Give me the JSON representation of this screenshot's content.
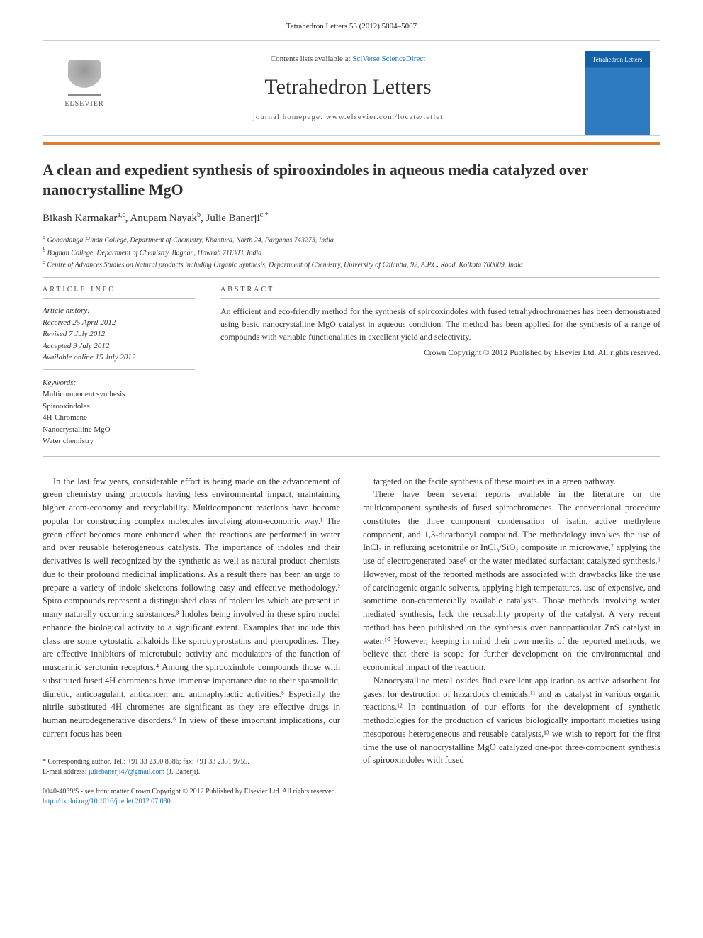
{
  "citation": "Tetrahedron Letters 53 (2012) 5004–5007",
  "header": {
    "contents_prefix": "Contents lists available at ",
    "contents_link": "SciVerse ScienceDirect",
    "journal": "Tetrahedron Letters",
    "homepage_label": "journal homepage: ",
    "homepage_url": "www.elsevier.com/locate/tetlet",
    "publisher": "ELSEVIER",
    "cover_jname": "Tetrahedron Letters"
  },
  "title": "A clean and expedient synthesis of spirooxindoles in aqueous media catalyzed over nanocrystalline MgO",
  "authors_html": "Bikash Karmakar<sup>a,c</sup>, Anupam Nayak<sup>b</sup>, Julie Banerji<sup>c,*</sup>",
  "affiliations": [
    "a Gobardanga Hindu College, Department of Chemistry, Khantura, North 24, Parganas 743273, India",
    "b Bagnan College, Department of Chemistry, Bagnan, Howrah 711303, India",
    "c Centre of Advances Studies on Natural products including Organic Synthesis, Department of Chemistry, University of Calcutta, 92, A.P.C. Road, Kolkata 700009, India"
  ],
  "info_labels": {
    "article_info": "ARTICLE INFO",
    "abstract": "ABSTRACT"
  },
  "history": {
    "label": "Article history:",
    "received": "Received 25 April 2012",
    "revised": "Revised 7 July 2012",
    "accepted": "Accepted 9 July 2012",
    "online": "Available online 15 July 2012"
  },
  "keywords": {
    "label": "Keywords:",
    "items": [
      "Multicomponent synthesis",
      "Spirooxindoles",
      "4H-Chromene",
      "Nanocrystalline MgO",
      "Water chemistry"
    ]
  },
  "abstract": "An efficient and eco-friendly method for the synthesis of spirooxindoles with fused tetrahydrochromenes has been demonstrated using basic nanocrystalline MgO catalyst in aqueous condition. The method has been applied for the synthesis of a range of compounds with variable functionalities in excellent yield and selectivity.",
  "copyright_abstract": "Crown Copyright © 2012 Published by Elsevier Ltd. All rights reserved.",
  "body": {
    "p1": "In the last few years, considerable effort is being made on the advancement of green chemistry using protocols having less environmental impact, maintaining higher atom-economy and recyclability. Multicomponent reactions have become popular for constructing complex molecules involving atom-economic way.¹ The green effect becomes more enhanced when the reactions are performed in water and over reusable heterogeneous catalysts. The importance of indoles and their derivatives is well recognized by the synthetic as well as natural product chemists due to their profound medicinal implications. As a result there has been an urge to prepare a variety of indole skeletons following easy and effective methodology.² Spiro compounds represent a distinguished class of molecules which are present in many naturally occurring substances.³ Indoles being involved in these spiro nuclei enhance the biological activity to a significant extent. Examples that include this class are some cytostatic alkaloids like spirotryprostatins and pteropodines. They are effective inhibitors of microtubule activity and modulators of the function of muscarinic serotonin receptors.⁴ Among the spirooxindole compounds those with substituted fused 4H chromenes have immense importance due to their spasmolitic, diuretic, anticoagulant, anticancer, and antinaphylactic activities.⁵ Especially the nitrile substituted 4H chromenes are significant as they are effective drugs in human neurodegenerative disorders.⁶ In view of these important implications, our current focus has been",
    "p2": "targeted on the facile synthesis of these moieties in a green pathway.",
    "p3": "There have been several reports available in the literature on the multicomponent synthesis of fused spirochromenes. The conventional procedure constitutes the three component condensation of isatin, active methylene component, and 1,3-dicarbonyl compound. The methodology involves the use of InCl₃ in refluxing acetonitrile or InCl₃/SiO₂ composite in microwave,⁷ applying the use of electrogenerated base⁸ or the water mediated surfactant catalyzed synthesis.⁹ However, most of the reported methods are associated with drawbacks like the use of carcinogenic organic solvents, applying high temperatures, use of expensive, and sometime non-commercially available catalysts. Those methods involving water mediated synthesis, lack the reusability property of the catalyst. A very recent method has been published on the synthesis over nanoparticular ZnS catalyst in water.¹⁰ However, keeping in mind their own merits of the reported methods, we believe that there is scope for further development on the environmental and economical impact of the reaction.",
    "p4": "Nanocrystalline metal oxides find excellent application as active adsorbent for gases, for destruction of hazardous chemicals,¹¹ and as catalyst in various organic reactions.¹² In continuation of our efforts for the development of synthetic methodologies for the production of various biologically important moieties using mesoporous heterogeneous and reusable catalysts,¹³ we wish to report for the first time the use of nanocrystalline MgO catalyzed one-pot three-component synthesis of spirooxindoles with fused"
  },
  "footnote": {
    "corr": "* Corresponding author. Tel.: +91 33 2350 8386; fax: +91 33 2351 9755.",
    "email_label": "E-mail address:",
    "email": "juliebanerji47@gmail.com",
    "email_who": "(J. Banerji)."
  },
  "footer": {
    "issn": "0040-4039/$ - see front matter Crown Copyright © 2012 Published by Elsevier Ltd. All rights reserved.",
    "doi": "http://dx.doi.org/10.1016/j.tetlet.2012.07.030"
  },
  "colors": {
    "accent_orange": "#e07b2e",
    "link_blue": "#1a6fb5",
    "cover_blue_top": "#1460a8",
    "cover_blue_bot": "#2f7bc2",
    "rule_gray": "#bfbfbf",
    "text": "#333333"
  }
}
